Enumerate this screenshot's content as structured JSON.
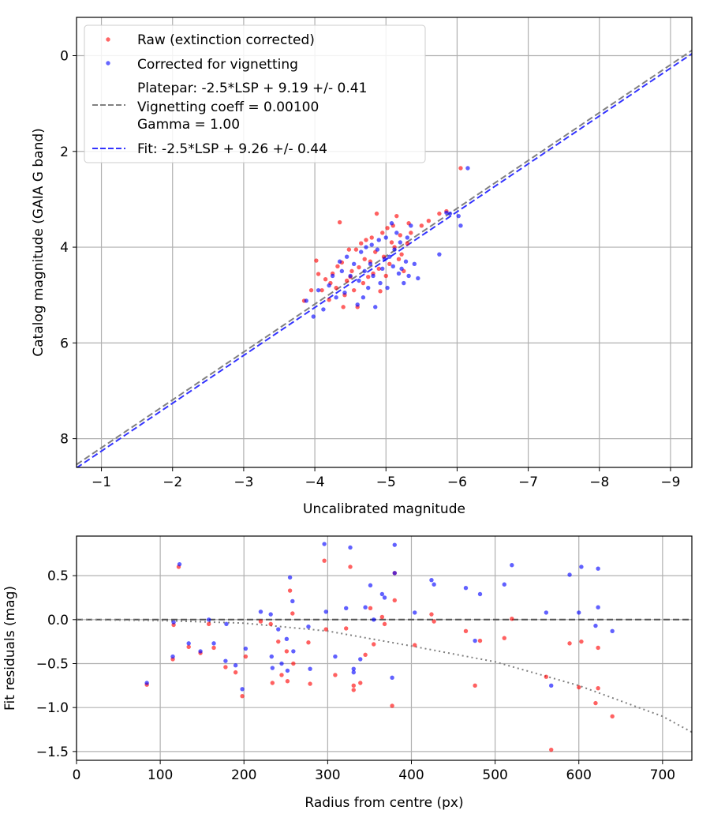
{
  "chart_data": [
    {
      "type": "scatter",
      "xlabel": "Uncalibrated magnitude",
      "ylabel": "Catalog magnitude (GAIA G band)",
      "xlim": [
        -0.65,
        -9.3
      ],
      "ylim": [
        8.6,
        -0.8
      ],
      "x_ticks": [
        -1,
        -2,
        -3,
        -4,
        -5,
        -6,
        -7,
        -8,
        -9
      ],
      "x_tick_labels": [
        "−1",
        "−2",
        "−3",
        "−4",
        "−5",
        "−6",
        "−7",
        "−8",
        "−9"
      ],
      "y_ticks": [
        0,
        2,
        4,
        6,
        8
      ],
      "y_tick_labels": [
        "0",
        "2",
        "4",
        "6",
        "8"
      ],
      "grid": true,
      "legend_position": "top-left",
      "legend": [
        {
          "label": "Raw (extinction corrected)",
          "kind": "point",
          "color": "#ff0000"
        },
        {
          "label": "Corrected for vignetting",
          "kind": "point",
          "color": "#0000ff"
        },
        {
          "label": "Platepar: -2.5*LSP + 9.19 +/- 0.41",
          "label2": "Vignetting coeff = 0.00100",
          "label3": "Gamma = 1.00",
          "kind": "dashed",
          "color": "#808080"
        },
        {
          "label": "Fit: -2.5*LSP + 9.26 +/- 0.44",
          "kind": "dashed",
          "color": "#3333ff"
        }
      ],
      "lines": [
        {
          "name": "Platepar",
          "slope": 1,
          "intercept": 9.19,
          "color": "#808080"
        },
        {
          "name": "Fit",
          "slope": 1,
          "intercept": 9.26,
          "color": "#3333ff"
        }
      ],
      "series": [
        {
          "name": "Raw (extinction corrected)",
          "color": "#ff0000",
          "points": [
            [
              -3.85,
              5.12
            ],
            [
              -3.95,
              4.9
            ],
            [
              -4.02,
              4.28
            ],
            [
              -4.05,
              4.56
            ],
            [
              -4.1,
              4.9
            ],
            [
              -4.15,
              4.67
            ],
            [
              -4.2,
              5.1
            ],
            [
              -4.22,
              4.75
            ],
            [
              -4.25,
              4.55
            ],
            [
              -4.3,
              4.85
            ],
            [
              -4.32,
              4.4
            ],
            [
              -4.35,
              3.48
            ],
            [
              -4.38,
              4.32
            ],
            [
              -4.4,
              5.25
            ],
            [
              -4.42,
              5.0
            ],
            [
              -4.45,
              4.7
            ],
            [
              -4.48,
              4.05
            ],
            [
              -4.5,
              4.62
            ],
            [
              -4.52,
              4.5
            ],
            [
              -4.55,
              4.9
            ],
            [
              -4.58,
              4.05
            ],
            [
              -4.6,
              5.25
            ],
            [
              -4.62,
              4.42
            ],
            [
              -4.65,
              3.92
            ],
            [
              -4.68,
              4.75
            ],
            [
              -4.7,
              4.25
            ],
            [
              -4.72,
              3.85
            ],
            [
              -4.75,
              4.62
            ],
            [
              -4.78,
              4.3
            ],
            [
              -4.8,
              3.8
            ],
            [
              -4.82,
              4.55
            ],
            [
              -4.85,
              4.1
            ],
            [
              -4.87,
              3.3
            ],
            [
              -4.9,
              4.45
            ],
            [
              -4.92,
              4.92
            ],
            [
              -4.95,
              3.7
            ],
            [
              -4.97,
              4.2
            ],
            [
              -5.0,
              4.6
            ],
            [
              -5.02,
              3.6
            ],
            [
              -5.05,
              4.35
            ],
            [
              -5.08,
              3.9
            ],
            [
              -5.1,
              3.55
            ],
            [
              -5.12,
              4.0
            ],
            [
              -5.15,
              3.35
            ],
            [
              -5.18,
              4.25
            ],
            [
              -5.2,
              3.75
            ],
            [
              -5.22,
              4.15
            ],
            [
              -5.25,
              4.5
            ],
            [
              -5.3,
              3.92
            ],
            [
              -5.32,
              3.5
            ],
            [
              -5.35,
              3.7
            ],
            [
              -5.5,
              3.55
            ],
            [
              -5.6,
              3.45
            ],
            [
              -5.75,
              3.3
            ],
            [
              -5.85,
              3.25
            ],
            [
              -6.05,
              2.35
            ]
          ]
        },
        {
          "name": "Corrected for vignetting",
          "color": "#0000ff",
          "points": [
            [
              -3.88,
              5.12
            ],
            [
              -3.98,
              5.45
            ],
            [
              -4.05,
              4.9
            ],
            [
              -4.12,
              5.3
            ],
            [
              -4.2,
              4.8
            ],
            [
              -4.25,
              4.6
            ],
            [
              -4.3,
              5.05
            ],
            [
              -4.35,
              4.3
            ],
            [
              -4.38,
              4.5
            ],
            [
              -4.42,
              4.95
            ],
            [
              -4.45,
              4.2
            ],
            [
              -4.5,
              4.6
            ],
            [
              -4.55,
              4.35
            ],
            [
              -4.6,
              5.2
            ],
            [
              -4.62,
              4.7
            ],
            [
              -4.65,
              4.1
            ],
            [
              -4.68,
              5.05
            ],
            [
              -4.7,
              4.5
            ],
            [
              -4.72,
              4.0
            ],
            [
              -4.75,
              4.85
            ],
            [
              -4.78,
              4.35
            ],
            [
              -4.8,
              3.95
            ],
            [
              -4.82,
              4.6
            ],
            [
              -4.85,
              5.25
            ],
            [
              -4.88,
              4.05
            ],
            [
              -4.9,
              3.85
            ],
            [
              -4.92,
              4.75
            ],
            [
              -4.95,
              4.45
            ],
            [
              -4.98,
              4.25
            ],
            [
              -5.0,
              3.8
            ],
            [
              -5.02,
              4.85
            ],
            [
              -5.05,
              4.2
            ],
            [
              -5.08,
              3.5
            ],
            [
              -5.1,
              4.4
            ],
            [
              -5.12,
              4.05
            ],
            [
              -5.15,
              3.7
            ],
            [
              -5.18,
              4.55
            ],
            [
              -5.2,
              3.9
            ],
            [
              -5.22,
              4.45
            ],
            [
              -5.25,
              4.75
            ],
            [
              -5.28,
              4.3
            ],
            [
              -5.3,
              3.8
            ],
            [
              -5.32,
              4.6
            ],
            [
              -5.35,
              3.55
            ],
            [
              -5.4,
              4.35
            ],
            [
              -5.45,
              4.65
            ],
            [
              -5.85,
              3.28
            ],
            [
              -5.9,
              3.3
            ],
            [
              -6.02,
              3.35
            ],
            [
              -6.05,
              3.55
            ],
            [
              -6.15,
              2.35
            ],
            [
              -5.75,
              4.15
            ]
          ]
        }
      ]
    },
    {
      "type": "scatter",
      "xlabel": "Radius from centre (px)",
      "ylabel": "Fit residuals (mag)",
      "xlim": [
        0,
        735
      ],
      "ylim": [
        -1.6,
        0.95
      ],
      "x_ticks": [
        0,
        100,
        200,
        300,
        400,
        500,
        600,
        700
      ],
      "x_tick_labels": [
        "0",
        "100",
        "200",
        "300",
        "400",
        "500",
        "600",
        "700"
      ],
      "y_ticks": [
        0.5,
        0.0,
        -0.5,
        -1.0,
        -1.5
      ],
      "y_tick_labels": [
        "0.5",
        "0.0",
        "−0.5",
        "−1.0",
        "−1.5"
      ],
      "grid": true,
      "lines": [
        {
          "name": "zero",
          "style": "dashed",
          "color": "#555555",
          "x": [
            0,
            735
          ],
          "y": [
            0,
            0
          ]
        },
        {
          "name": "vignetting",
          "style": "dotted",
          "color": "#808080",
          "x": [
            0,
            100,
            200,
            300,
            400,
            500,
            600,
            700,
            735
          ],
          "y": [
            0.0,
            -0.01,
            -0.04,
            -0.13,
            -0.3,
            -0.48,
            -0.75,
            -1.1,
            -1.28
          ]
        }
      ],
      "series": [
        {
          "name": "Raw",
          "color": "#ff0000",
          "points": [
            [
              84,
              -0.74
            ],
            [
              115,
              -0.45
            ],
            [
              116,
              -0.06
            ],
            [
              122,
              0.6
            ],
            [
              134,
              -0.31
            ],
            [
              148,
              -0.38
            ],
            [
              158,
              -0.05
            ],
            [
              164,
              -0.32
            ],
            [
              178,
              -0.54
            ],
            [
              190,
              -0.6
            ],
            [
              198,
              -0.87
            ],
            [
              202,
              -0.42
            ],
            [
              220,
              -0.02
            ],
            [
              232,
              -0.05
            ],
            [
              234,
              -0.72
            ],
            [
              241,
              -0.25
            ],
            [
              245,
              -0.63
            ],
            [
              251,
              -0.36
            ],
            [
              252,
              -0.7
            ],
            [
              255,
              0.33
            ],
            [
              258,
              0.07
            ],
            [
              259,
              -0.5
            ],
            [
              277,
              -0.26
            ],
            [
              279,
              -0.73
            ],
            [
              296,
              0.67
            ],
            [
              298,
              -0.11
            ],
            [
              309,
              -0.63
            ],
            [
              322,
              -0.1
            ],
            [
              327,
              0.6
            ],
            [
              331,
              -0.8
            ],
            [
              331,
              -0.75
            ],
            [
              339,
              -0.72
            ],
            [
              345,
              -0.4
            ],
            [
              351,
              0.13
            ],
            [
              355,
              -0.28
            ],
            [
              365,
              0.03
            ],
            [
              368,
              -0.05
            ],
            [
              377,
              -0.98
            ],
            [
              380,
              0.22
            ],
            [
              380,
              0.53
            ],
            [
              404,
              -0.29
            ],
            [
              424,
              0.06
            ],
            [
              427,
              -0.02
            ],
            [
              465,
              -0.13
            ],
            [
              476,
              -0.75
            ],
            [
              482,
              -0.24
            ],
            [
              511,
              -0.21
            ],
            [
              520,
              0.01
            ],
            [
              561,
              -0.65
            ],
            [
              567,
              -1.48
            ],
            [
              589,
              -0.27
            ],
            [
              600,
              -0.77
            ],
            [
              603,
              -0.25
            ],
            [
              620,
              -0.95
            ],
            [
              623,
              -0.78
            ],
            [
              623,
              -0.32
            ],
            [
              640,
              -1.1
            ]
          ]
        },
        {
          "name": "Corrected",
          "color": "#0000ff",
          "points": [
            [
              84,
              -0.72
            ],
            [
              115,
              -0.42
            ],
            [
              116,
              -0.03
            ],
            [
              123,
              0.63
            ],
            [
              134,
              -0.27
            ],
            [
              148,
              -0.36
            ],
            [
              158,
              0.0
            ],
            [
              164,
              -0.27
            ],
            [
              178,
              -0.47
            ],
            [
              179,
              -0.05
            ],
            [
              190,
              -0.52
            ],
            [
              198,
              -0.79
            ],
            [
              202,
              -0.33
            ],
            [
              220,
              0.09
            ],
            [
              232,
              0.06
            ],
            [
              233,
              -0.42
            ],
            [
              234,
              -0.55
            ],
            [
              241,
              -0.11
            ],
            [
              245,
              -0.5
            ],
            [
              251,
              -0.22
            ],
            [
              252,
              -0.58
            ],
            [
              255,
              0.48
            ],
            [
              258,
              0.21
            ],
            [
              259,
              -0.36
            ],
            [
              277,
              -0.08
            ],
            [
              279,
              -0.56
            ],
            [
              296,
              0.86
            ],
            [
              298,
              0.09
            ],
            [
              309,
              -0.42
            ],
            [
              322,
              0.13
            ],
            [
              327,
              0.82
            ],
            [
              331,
              -0.56
            ],
            [
              331,
              -0.6
            ],
            [
              339,
              -0.45
            ],
            [
              345,
              0.14
            ],
            [
              351,
              0.39
            ],
            [
              355,
              0.0
            ],
            [
              365,
              0.29
            ],
            [
              368,
              0.25
            ],
            [
              377,
              -0.66
            ],
            [
              380,
              0.85
            ],
            [
              380,
              0.53
            ],
            [
              404,
              0.08
            ],
            [
              424,
              0.45
            ],
            [
              427,
              0.4
            ],
            [
              465,
              0.36
            ],
            [
              476,
              -0.24
            ],
            [
              482,
              0.29
            ],
            [
              511,
              0.4
            ],
            [
              520,
              0.62
            ],
            [
              561,
              0.08
            ],
            [
              567,
              -0.75
            ],
            [
              589,
              0.51
            ],
            [
              600,
              0.08
            ],
            [
              603,
              0.6
            ],
            [
              620,
              -0.07
            ],
            [
              623,
              0.58
            ],
            [
              623,
              0.14
            ],
            [
              640,
              -0.13
            ]
          ]
        }
      ]
    }
  ]
}
